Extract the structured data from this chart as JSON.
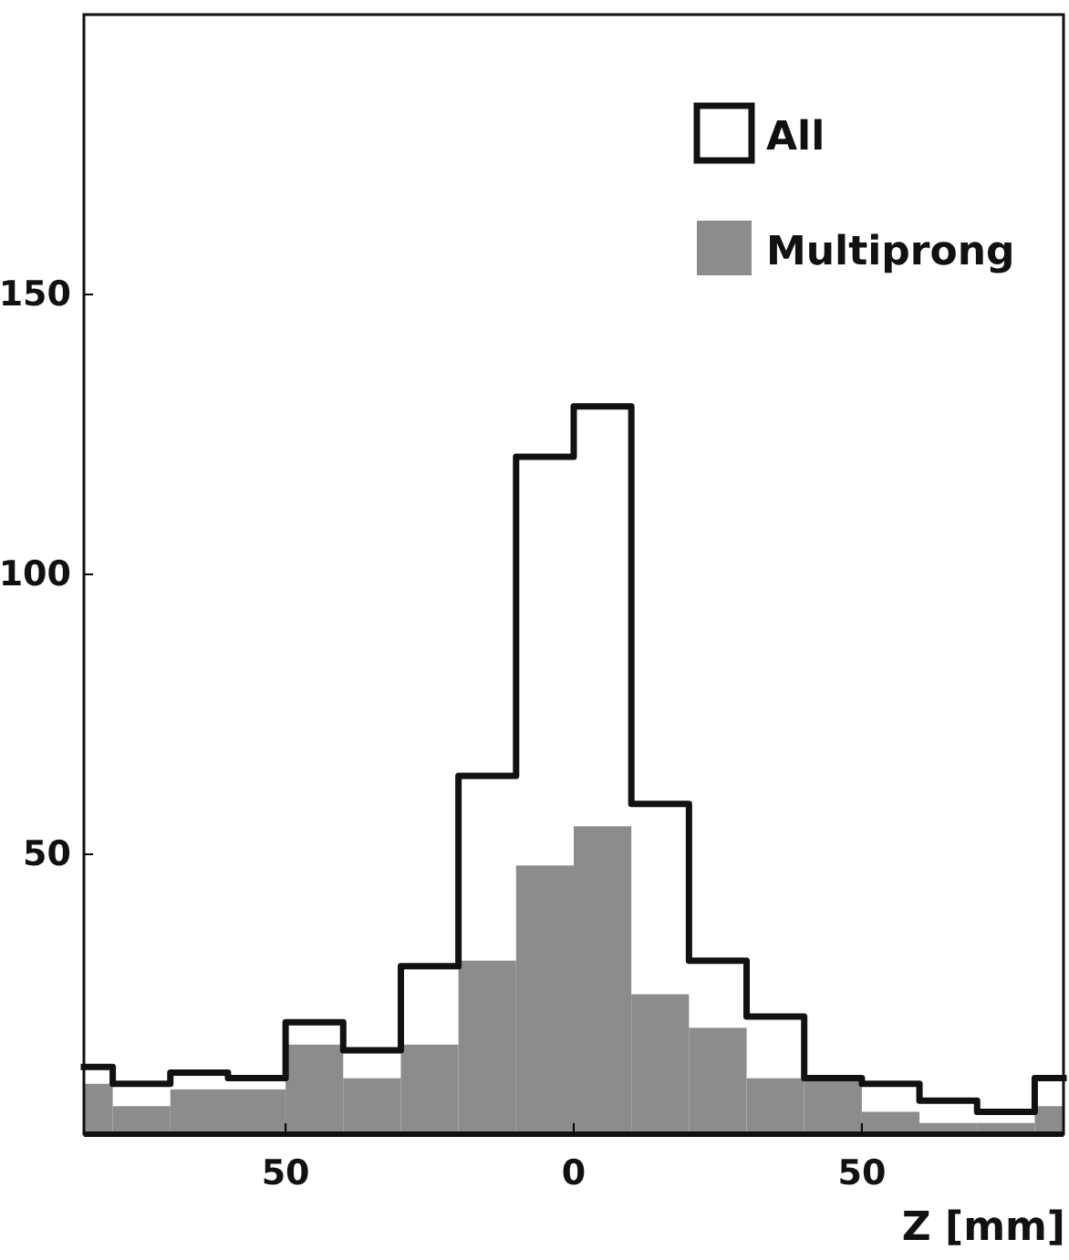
{
  "chart_data": {
    "type": "histogram",
    "xlabel": "Z [mm]",
    "bins": [
      -85,
      -80,
      -70,
      -60,
      -50,
      -40,
      -30,
      -20,
      -10,
      0,
      10,
      20,
      30,
      40,
      50,
      60,
      70,
      80,
      85
    ],
    "series": [
      {
        "name": "Multiprong",
        "color": "#8c8c8c",
        "values": [
          9,
          5,
          8,
          8,
          16,
          10,
          16,
          31,
          48,
          55,
          25,
          19,
          10,
          10,
          4,
          2,
          2,
          5
        ]
      },
      {
        "name": "All",
        "color": "#111111",
        "type": "step",
        "x": [
          -85,
          -80,
          -70,
          -60,
          -50,
          -40,
          -30,
          -20,
          -10,
          0,
          10,
          20,
          30,
          40,
          50,
          60,
          70,
          80,
          85
        ],
        "values": [
          12,
          9,
          11,
          10,
          20,
          15,
          30,
          64,
          121,
          130,
          59,
          31,
          21,
          10,
          9,
          6,
          4,
          10,
          10
        ]
      }
    ],
    "xlim": [
      -85,
      85
    ],
    "xticks": [
      {
        "value": -50,
        "label": "50"
      },
      0,
      50
    ],
    "ylim": [
      0,
      200
    ],
    "yticks": [
      50,
      100,
      150
    ],
    "legend": "top right",
    "grid": false
  }
}
